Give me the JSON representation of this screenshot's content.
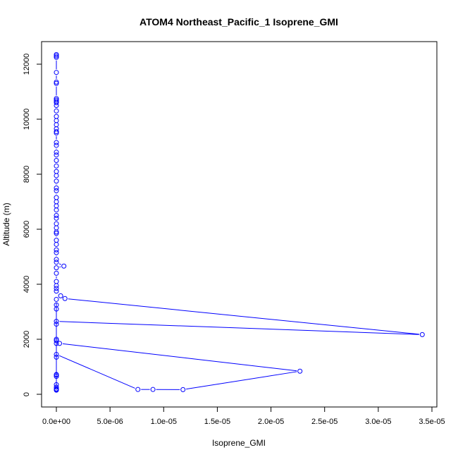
{
  "chart_data": {
    "type": "line",
    "title": "ATOM4 Northeast_Pacific_1 Isoprene_GMI",
    "xlabel": "Isoprene_GMI",
    "ylabel": "Altitude (m)",
    "xlim": [
      0,
      3.5e-05
    ],
    "ylim": [
      0,
      12500
    ],
    "x_ticks": [
      {
        "value": 0,
        "label": "0.0e+00"
      },
      {
        "value": 5e-06,
        "label": "5.0e-06"
      },
      {
        "value": 1e-05,
        "label": "1.0e-05"
      },
      {
        "value": 1.5e-05,
        "label": "1.5e-05"
      },
      {
        "value": 2e-05,
        "label": "2.0e-05"
      },
      {
        "value": 2.5e-05,
        "label": "2.5e-05"
      },
      {
        "value": 3e-05,
        "label": "3.0e-05"
      },
      {
        "value": 3.5e-05,
        "label": "3.5e-05"
      }
    ],
    "y_ticks": [
      {
        "value": 0,
        "label": "0"
      },
      {
        "value": 2000,
        "label": "2000"
      },
      {
        "value": 4000,
        "label": "4000"
      },
      {
        "value": 6000,
        "label": "6000"
      },
      {
        "value": 8000,
        "label": "8000"
      },
      {
        "value": 10000,
        "label": "10000"
      },
      {
        "value": 12000,
        "label": "12000"
      }
    ],
    "grid": false,
    "marker": "open-circle",
    "series_color": "#0000ff",
    "series": [
      {
        "points": [
          [
            0,
            12350
          ],
          [
            0,
            12300
          ],
          [
            0,
            12250
          ],
          [
            0,
            11700
          ],
          [
            0,
            11350
          ],
          [
            0,
            11300
          ],
          [
            0,
            10750
          ],
          [
            0,
            10700
          ],
          [
            0,
            10650
          ],
          [
            0,
            10600
          ],
          [
            0,
            10500
          ],
          [
            0,
            10300
          ],
          [
            0,
            10100
          ],
          [
            0,
            9950
          ],
          [
            0,
            9800
          ],
          [
            0,
            9650
          ],
          [
            0,
            9550
          ],
          [
            0,
            9500
          ],
          [
            0,
            9150
          ],
          [
            0,
            9050
          ],
          [
            0,
            8800
          ],
          [
            0,
            8700
          ],
          [
            0,
            8500
          ],
          [
            0,
            8300
          ],
          [
            0,
            8100
          ],
          [
            0,
            7950
          ],
          [
            0,
            7750
          ],
          [
            0,
            7500
          ],
          [
            0,
            7400
          ],
          [
            0,
            7150
          ],
          [
            0,
            7000
          ],
          [
            0,
            6850
          ],
          [
            0,
            6700
          ],
          [
            0,
            6500
          ],
          [
            0,
            6400
          ],
          [
            0,
            6200
          ],
          [
            0,
            6050
          ],
          [
            0,
            5900
          ],
          [
            0,
            5850
          ],
          [
            0,
            5600
          ],
          [
            0,
            5450
          ],
          [
            0,
            5250
          ],
          [
            0,
            5150
          ],
          [
            0,
            4900
          ],
          [
            0,
            4800
          ],
          [
            7e-07,
            4660
          ],
          [
            0,
            4600
          ],
          [
            0,
            4400
          ],
          [
            0,
            4100
          ],
          [
            0,
            3950
          ],
          [
            0,
            3850
          ],
          [
            0,
            3750
          ],
          [
            4e-07,
            3580
          ],
          [
            8e-07,
            3480
          ],
          [
            3.41e-05,
            2170
          ],
          [
            0,
            2650
          ],
          [
            0,
            2550
          ],
          [
            0,
            2000
          ],
          [
            0,
            1950
          ],
          [
            0,
            1850
          ],
          [
            3e-07,
            1850
          ],
          [
            2.27e-05,
            840
          ],
          [
            1.18e-05,
            170
          ],
          [
            9e-06,
            175
          ],
          [
            7.6e-06,
            175
          ],
          [
            0,
            1450
          ],
          [
            0,
            1350
          ],
          [
            0,
            720
          ],
          [
            0,
            700
          ],
          [
            0,
            650
          ],
          [
            0,
            350
          ],
          [
            0,
            260
          ],
          [
            0,
            200
          ],
          [
            0,
            170
          ],
          [
            0,
            150
          ],
          [
            0,
            3450
          ],
          [
            0,
            3250
          ],
          [
            0,
            3100
          ]
        ]
      }
    ]
  }
}
